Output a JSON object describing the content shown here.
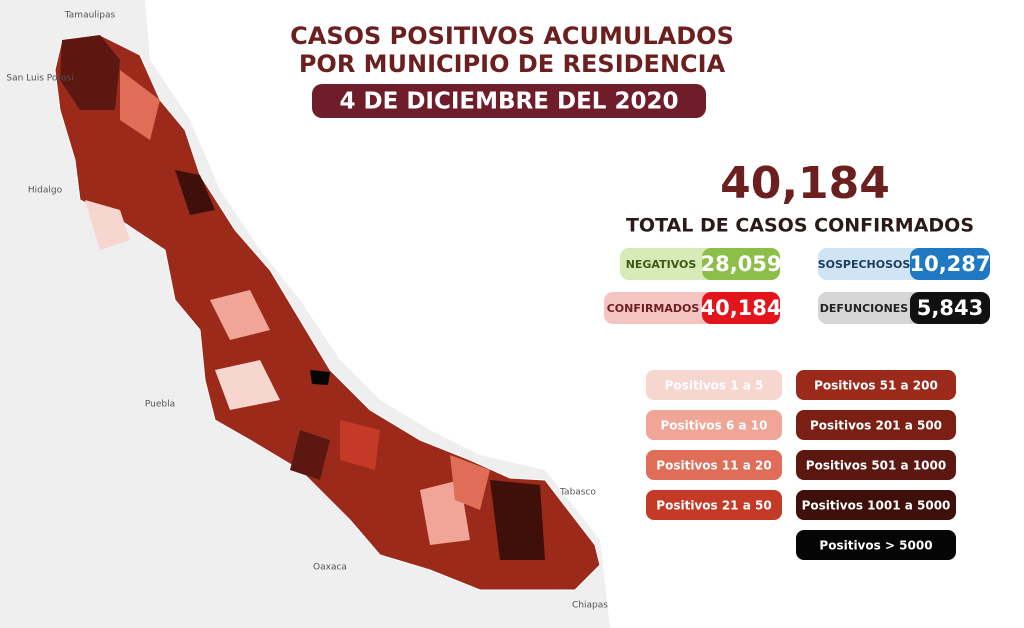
{
  "header": {
    "title_line1": "CASOS POSITIVOS ACUMULADOS",
    "title_line2": "POR MUNICIPIO DE RESIDENCIA",
    "date": "4 DE DICIEMBRE DEL 2020"
  },
  "total": {
    "value": "40,184",
    "label": "TOTAL DE CASOS CONFIRMADOS"
  },
  "stats": [
    {
      "label": "NEGATIVOS",
      "value": "28,059",
      "label_color": "#d6ebb5",
      "value_color": "#8bbf48",
      "text_color": "#3d5a1a"
    },
    {
      "label": "SOSPECHOSOS",
      "value": "10,287",
      "label_color": "#cfe5f6",
      "value_color": "#1e78c2",
      "text_color": "#1d3d5c"
    },
    {
      "label": "CONFIRMADOS",
      "value": "40,184",
      "label_color": "#f6c3c3",
      "value_color": "#e3141b",
      "text_color": "#6b1f1f"
    },
    {
      "label": "DEFUNCIONES",
      "value": "5,843",
      "label_color": "#d5d5d5",
      "value_color": "#111111",
      "text_color": "#222222"
    }
  ],
  "legend": [
    {
      "label": "Positivos 1 a 5",
      "color": "#f7d6d0"
    },
    {
      "label": "Positivos 6 a 10",
      "color": "#f0a596"
    },
    {
      "label": "Positivos 11 a 20",
      "color": "#e06d58"
    },
    {
      "label": "Positivos 21 a 50",
      "color": "#c53a26"
    },
    {
      "label": "Positivos 51 a 200",
      "color": "#9c2a1b"
    },
    {
      "label": "Positivos 201 a 500",
      "color": "#7b1f14"
    },
    {
      "label": "Positivos 501 a 1000",
      "color": "#5c1710"
    },
    {
      "label": "Positivos 1001 a 5000",
      "color": "#3e1009"
    },
    {
      "label": "Positivos > 5000",
      "color": "#050505"
    }
  ],
  "map_labels": [
    {
      "text": "Tamaulipas"
    },
    {
      "text": "San Luis Potosí"
    },
    {
      "text": "Hidalgo"
    },
    {
      "text": "Puebla"
    },
    {
      "text": "Oaxaca"
    },
    {
      "text": "Tabasco"
    },
    {
      "text": "Chiapas"
    }
  ]
}
